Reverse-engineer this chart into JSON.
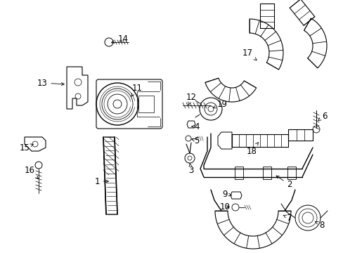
{
  "background_color": "#ffffff",
  "fig_width": 4.89,
  "fig_height": 3.6,
  "dpi": 100,
  "line_color": "#000000",
  "font_size": 8.5
}
